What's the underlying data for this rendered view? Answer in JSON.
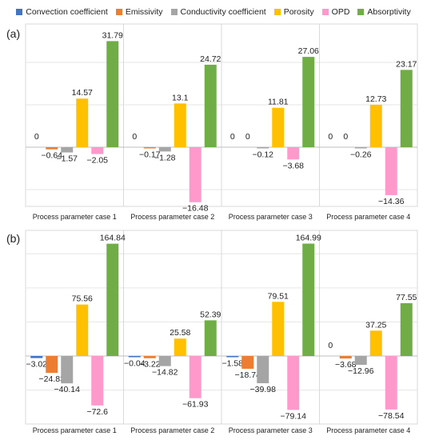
{
  "legend": [
    {
      "name": "Convection coefficient",
      "color": "#4472C4"
    },
    {
      "name": "Emissivity",
      "color": "#ED7D31"
    },
    {
      "name": "Conductivity coefficient",
      "color": "#A5A5A5"
    },
    {
      "name": "Porosity",
      "color": "#FFC000"
    },
    {
      "name": "OPD",
      "color": "#FF99CC"
    },
    {
      "name": "Absorptivity",
      "color": "#70AD47"
    }
  ],
  "chart_data": [
    {
      "panel_label": "(a)",
      "type": "bar",
      "categories": [
        "Process parameter case 1",
        "Process parameter case 2",
        "Process parameter case 3",
        "Process parameter case 4"
      ],
      "series": [
        {
          "name": "Convection coefficient",
          "values": [
            0,
            0,
            0,
            0
          ]
        },
        {
          "name": "Emissivity",
          "values": [
            -0.64,
            -0.17,
            0,
            0
          ]
        },
        {
          "name": "Conductivity coefficient",
          "values": [
            -1.57,
            -1.28,
            -0.12,
            -0.26
          ]
        },
        {
          "name": "Porosity",
          "values": [
            14.57,
            13.1,
            11.81,
            12.73
          ]
        },
        {
          "name": "OPD",
          "values": [
            -2.05,
            -16.48,
            -3.68,
            -14.36
          ]
        },
        {
          "name": "Absorptivity",
          "values": [
            31.79,
            24.72,
            27.06,
            23.17
          ]
        }
      ],
      "labels": [
        [
          "0",
          "0",
          "0",
          "0"
        ],
        [
          "−0.64",
          "−0.17",
          "0",
          "0"
        ],
        [
          "−1.57",
          "−1.28",
          "−0.12",
          "−0.26"
        ],
        [
          "14.57",
          "13.1",
          "11.81",
          "12.73"
        ],
        [
          "−2.05",
          "−16.48",
          "−3.68",
          "−14.36"
        ],
        [
          "31.79",
          "24.72",
          "27.06",
          "23.17"
        ]
      ],
      "ylim": [
        -25,
        35
      ],
      "grid": true
    },
    {
      "panel_label": "(b)",
      "type": "bar",
      "categories": [
        "Process parameter case 1",
        "Process parameter case 2",
        "Process parameter case 3",
        "Process parameter case 4"
      ],
      "series": [
        {
          "name": "Convection coefficient",
          "values": [
            -3.02,
            -0.04,
            -1.58,
            0
          ]
        },
        {
          "name": "Emissivity",
          "values": [
            -24.83,
            -3.22,
            -18.74,
            -3.68
          ]
        },
        {
          "name": "Conductivity coefficient",
          "values": [
            -40.14,
            -14.82,
            -39.98,
            -12.96
          ]
        },
        {
          "name": "Porosity",
          "values": [
            75.56,
            25.58,
            79.51,
            37.25
          ]
        },
        {
          "name": "OPD",
          "values": [
            -72.6,
            -61.93,
            -79.14,
            -78.54
          ]
        },
        {
          "name": "Absorptivity",
          "values": [
            164.84,
            52.39,
            164.99,
            77.55
          ]
        }
      ],
      "labels": [
        [
          "−3.02",
          "−0.04",
          "−1.58",
          "0"
        ],
        [
          "−24.83",
          "−3.22",
          "−18.74",
          "−3.68"
        ],
        [
          "−40.14",
          "−14.82",
          "−39.98",
          "−12.96"
        ],
        [
          "75.56",
          "25.58",
          "79.51",
          "37.25"
        ],
        [
          "−72.6",
          "−61.93",
          "−79.14",
          "−78.54"
        ],
        [
          "164.84",
          "52.39",
          "164.99",
          "77.55"
        ]
      ],
      "ylim": [
        -100,
        175
      ],
      "grid": true
    }
  ]
}
